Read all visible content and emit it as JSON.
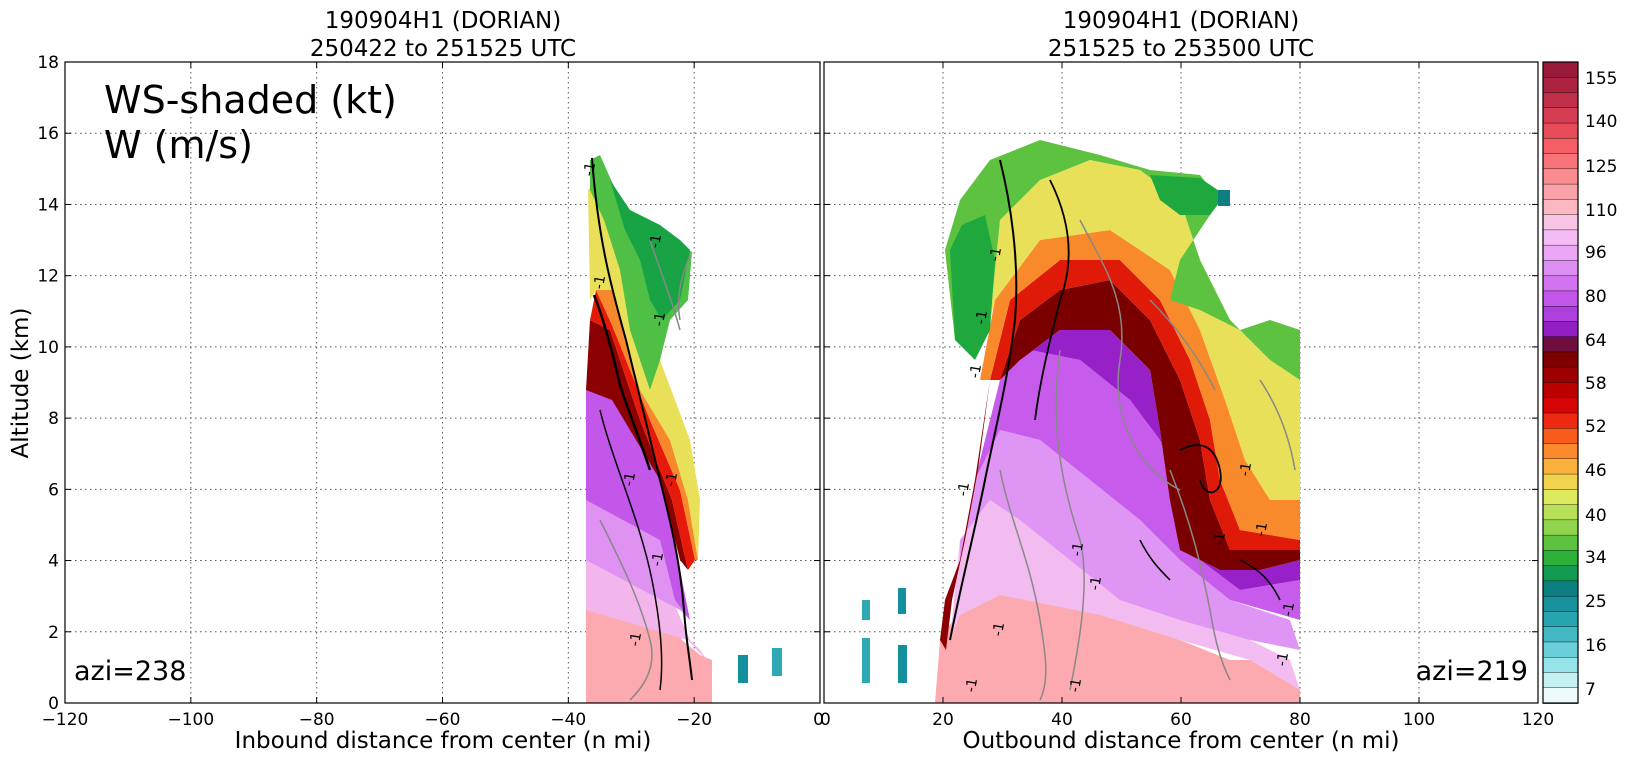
{
  "chart_data": [
    {
      "type": "heatmap",
      "title_line1": "190904H1 (DORIAN)",
      "title_line2": "250422 to 251525 UTC",
      "xlabel": "Inbound distance from center (n mi)",
      "ylabel": "Altitude (km)",
      "xlim": [
        -120,
        0
      ],
      "ylim": [
        0,
        18
      ],
      "xticks": [
        "−120",
        "−100",
        "−80",
        "−60",
        "−40",
        "−20",
        "0"
      ],
      "yticks": [
        "0",
        "2",
        "4",
        "6",
        "8",
        "10",
        "12",
        "14",
        "16",
        "18"
      ],
      "annotation_line1": "WS-shaded (kt)",
      "annotation_line2": "W (m/s)",
      "azi_label": "azi=238",
      "grid": true
    },
    {
      "type": "heatmap",
      "title_line1": "190904H1 (DORIAN)",
      "title_line2": "251525 to 253500 UTC",
      "xlabel": "Outbound distance from center (n mi)",
      "xlim": [
        0,
        120
      ],
      "ylim": [
        0,
        18
      ],
      "xticks": [
        "0",
        "20",
        "40",
        "60",
        "80",
        "100",
        "120"
      ],
      "azi_label": "azi=219",
      "grid": true
    }
  ],
  "colorbar": {
    "tick_labels": [
      "155",
      "140",
      "125",
      "110",
      "96",
      "80",
      "64",
      "58",
      "52",
      "46",
      "40",
      "34",
      "25",
      "16",
      "7"
    ],
    "colors_top_to_bottom": [
      "#9a1a3a",
      "#ac2341",
      "#c0304a",
      "#d63d52",
      "#e84b58",
      "#f45e64",
      "#f8747a",
      "#fa8b90",
      "#fba2a8",
      "#fcb8c2",
      "#f8c5e4",
      "#f4bbf4",
      "#eaa6f4",
      "#de8ff2",
      "#d273f0",
      "#c257ea",
      "#ad3fdd",
      "#931fc4",
      "#6e0e3e",
      "#7e0000",
      "#9c0000",
      "#bb0000",
      "#d70606",
      "#ef2812",
      "#f85c1c",
      "#fb8a2c",
      "#f9b13c",
      "#f1d24c",
      "#ddea5e",
      "#b7e058",
      "#8fd44c",
      "#5cc240",
      "#2cb03a",
      "#109a52",
      "#0d7f80",
      "#17919b",
      "#26a4b0",
      "#42b8c4",
      "#6acfd8",
      "#95e2e8",
      "#c6f1f3",
      "#eefbfc"
    ],
    "contour_label": "-1"
  }
}
